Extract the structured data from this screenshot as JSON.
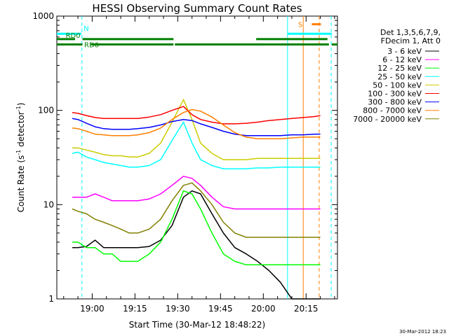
{
  "chart_data": {
    "type": "line",
    "title": "HESSI Observing Summary Count Rates",
    "xlabel": "Start Time (30-Mar-12 18:48:22)",
    "ylabel_main": "Count Rate (s",
    "ylabel_sup1": "-1",
    "ylabel_mid": " detector",
    "ylabel_sup2": "-1",
    "ylabel_end": ")",
    "y_scale": "log",
    "ylim": [
      1,
      1000
    ],
    "y_ticks": [
      {
        "value": 1,
        "label": "1"
      },
      {
        "value": 10,
        "label": "10"
      },
      {
        "value": 100,
        "label": "100"
      },
      {
        "value": 1000,
        "label": "1000"
      }
    ],
    "xlim_minutes": [
      -12.4,
      86
    ],
    "x_ticks": [
      {
        "value": 0,
        "label": "19:00"
      },
      {
        "value": 15,
        "label": "19:15"
      },
      {
        "value": 30,
        "label": "19:30"
      },
      {
        "value": 45,
        "label": "19:45"
      },
      {
        "value": 60,
        "label": "20:00"
      },
      {
        "value": 75,
        "label": "20:15"
      }
    ],
    "legend_header": [
      "Det 1,3,5,6,7,9,",
      "FDecim 1, Att 0"
    ],
    "legend_placement": "right",
    "series": [
      {
        "name": "3 - 6 keV",
        "color": "#000000",
        "values": [
          3.5,
          3.5,
          3.6,
          4.2,
          3.5,
          3.5,
          3.5,
          3.5,
          3.5,
          3.6,
          4.2,
          6,
          12,
          14,
          13,
          8,
          5,
          3.5,
          3,
          2.5,
          2,
          1.5,
          1,
          1,
          1,
          1
        ]
      },
      {
        "name": "6 - 12 keV",
        "color": "#ff00ff",
        "values": [
          12,
          12,
          12,
          13,
          12,
          11,
          11,
          11,
          11,
          11.5,
          13,
          16,
          20,
          19,
          16,
          12,
          9.5,
          9,
          9,
          9,
          9,
          9,
          9,
          9,
          9,
          9
        ]
      },
      {
        "name": "12 - 25 keV",
        "color": "#00ff00",
        "values": [
          4,
          4,
          3.5,
          3.5,
          3,
          3,
          2.5,
          2.5,
          2.5,
          3,
          4,
          7,
          14,
          13,
          9,
          5,
          3,
          2.5,
          2.3,
          2.3,
          2.3,
          2.3,
          2.3,
          2.3,
          2.3,
          2.3
        ]
      },
      {
        "name": "25 - 50 keV",
        "color": "#00ffff",
        "values": [
          35,
          36,
          32,
          30,
          28,
          27,
          26,
          25,
          25,
          26,
          30,
          48,
          75,
          45,
          30,
          26,
          24,
          24,
          24,
          24.5,
          24.5,
          25,
          25,
          25,
          25,
          25
        ]
      },
      {
        "name": "50 - 100 keV",
        "color": "#cccc00",
        "values": [
          40,
          40,
          38,
          36,
          34,
          33,
          33,
          32,
          32,
          35,
          45,
          75,
          130,
          80,
          45,
          35,
          30,
          30,
          30,
          31,
          31,
          31,
          31,
          31,
          31,
          31
        ]
      },
      {
        "name": "100 - 300 keV",
        "color": "#ff0000",
        "values": [
          95,
          93,
          88,
          84,
          82,
          82,
          82,
          82,
          82,
          85,
          90,
          100,
          110,
          90,
          80,
          75,
          72,
          72,
          73,
          75,
          78,
          80,
          82,
          84,
          86,
          88
        ]
      },
      {
        "name": "300 - 800 keV",
        "color": "#0000ff",
        "values": [
          82,
          80,
          73,
          67,
          64,
          63,
          63,
          63,
          64,
          66,
          70,
          76,
          80,
          78,
          72,
          66,
          60,
          56,
          54,
          54,
          54,
          54,
          55,
          55,
          56,
          56
        ]
      },
      {
        "name": "800 - 7000 keV",
        "color": "#ff7f00",
        "values": [
          65,
          64,
          60,
          56,
          55,
          54,
          54,
          54,
          55,
          58,
          65,
          80,
          95,
          102,
          98,
          85,
          70,
          58,
          52,
          50,
          50,
          50,
          51,
          52,
          52,
          52
        ]
      },
      {
        "name": "7000 - 20000 keV",
        "color": "#808000",
        "values": [
          9,
          8.5,
          8,
          7,
          6.5,
          6,
          5.5,
          5,
          5,
          5.5,
          7,
          11,
          16,
          17,
          14,
          10,
          6.5,
          5,
          4.5,
          4.5,
          4.5,
          4.5,
          4.5,
          4.5,
          4.5,
          4.5
        ]
      }
    ],
    "series_x_minutes": [
      -7,
      -5,
      -2,
      1,
      4,
      7,
      10,
      13,
      16,
      20,
      24,
      28,
      32,
      35,
      38,
      42,
      46,
      50,
      54,
      58,
      62,
      66,
      70,
      74,
      78,
      80
    ],
    "flag_lines": [
      {
        "label": "N",
        "color": "#00ffff",
        "y": 650
      },
      {
        "label": "RD0",
        "color": "#008000",
        "y": 570
      },
      {
        "label": "RD6",
        "color": "#008000",
        "y": 500
      },
      {
        "label": "S",
        "color": "#ff7f00",
        "y": 820
      }
    ],
    "timestamp": "30-Mar-2012 18:23"
  }
}
